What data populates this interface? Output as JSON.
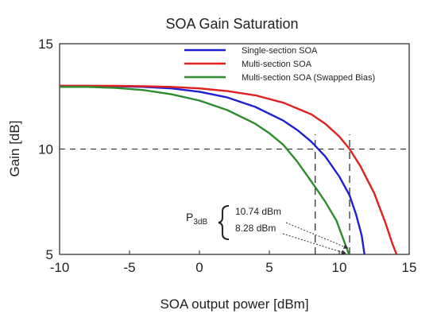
{
  "chart_data": {
    "type": "line",
    "title": "SOA Gain Saturation",
    "xlabel": "SOA output power [dBm]",
    "ylabel": "Gain [dB]",
    "xlim": [
      -10,
      15
    ],
    "ylim": [
      5,
      15
    ],
    "x_ticks": [
      "-10",
      "-5",
      "0",
      "5",
      "10",
      "15"
    ],
    "y_ticks": [
      "5",
      "10",
      "15"
    ],
    "grid": false,
    "legend_position": "top-right",
    "series": [
      {
        "name": "Single-section SOA",
        "color": "#1f1fd6",
        "points": [
          [
            -10,
            13.0
          ],
          [
            -8,
            13.0
          ],
          [
            -6,
            12.98
          ],
          [
            -4,
            12.95
          ],
          [
            -2,
            12.88
          ],
          [
            0,
            12.72
          ],
          [
            2,
            12.45
          ],
          [
            4,
            12.0
          ],
          [
            6,
            11.35
          ],
          [
            7,
            10.9
          ],
          [
            8,
            10.35
          ],
          [
            9,
            9.65
          ],
          [
            10,
            8.7
          ],
          [
            10.74,
            7.8
          ],
          [
            11.2,
            6.9
          ],
          [
            11.6,
            5.9
          ],
          [
            11.8,
            5.0
          ]
        ]
      },
      {
        "name": "Multi-section SOA",
        "color": "#e02020",
        "points": [
          [
            -10,
            13.0
          ],
          [
            -8,
            13.0
          ],
          [
            -6,
            13.0
          ],
          [
            -4,
            12.98
          ],
          [
            -2,
            12.95
          ],
          [
            0,
            12.88
          ],
          [
            2,
            12.75
          ],
          [
            4,
            12.55
          ],
          [
            6,
            12.2
          ],
          [
            8,
            11.65
          ],
          [
            9,
            11.2
          ],
          [
            10,
            10.6
          ],
          [
            10.74,
            10.0
          ],
          [
            11.5,
            9.2
          ],
          [
            12.5,
            7.9
          ],
          [
            13.3,
            6.5
          ],
          [
            13.8,
            5.5
          ],
          [
            14.1,
            5.0
          ]
        ]
      },
      {
        "name": "Multi-section SOA (Swapped Bias)",
        "color": "#2e8b2e",
        "points": [
          [
            -10,
            12.95
          ],
          [
            -8,
            12.95
          ],
          [
            -6,
            12.9
          ],
          [
            -4,
            12.8
          ],
          [
            -2,
            12.6
          ],
          [
            0,
            12.3
          ],
          [
            2,
            11.85
          ],
          [
            4,
            11.2
          ],
          [
            5,
            10.75
          ],
          [
            6,
            10.2
          ],
          [
            7,
            9.4
          ],
          [
            8.28,
            8.2
          ],
          [
            9,
            7.5
          ],
          [
            9.8,
            6.6
          ],
          [
            10.3,
            5.7
          ],
          [
            10.7,
            5.0
          ]
        ]
      }
    ],
    "reference_line": {
      "y": 10,
      "style": "dashed"
    },
    "markers": [
      {
        "x": 8.28,
        "style": "dashed"
      },
      {
        "x": 10.74,
        "style": "dashed"
      }
    ],
    "annotation": {
      "label_main": "P",
      "label_sub": "3dB",
      "values": [
        "10.74 dBm",
        "8.28 dBm"
      ]
    }
  }
}
